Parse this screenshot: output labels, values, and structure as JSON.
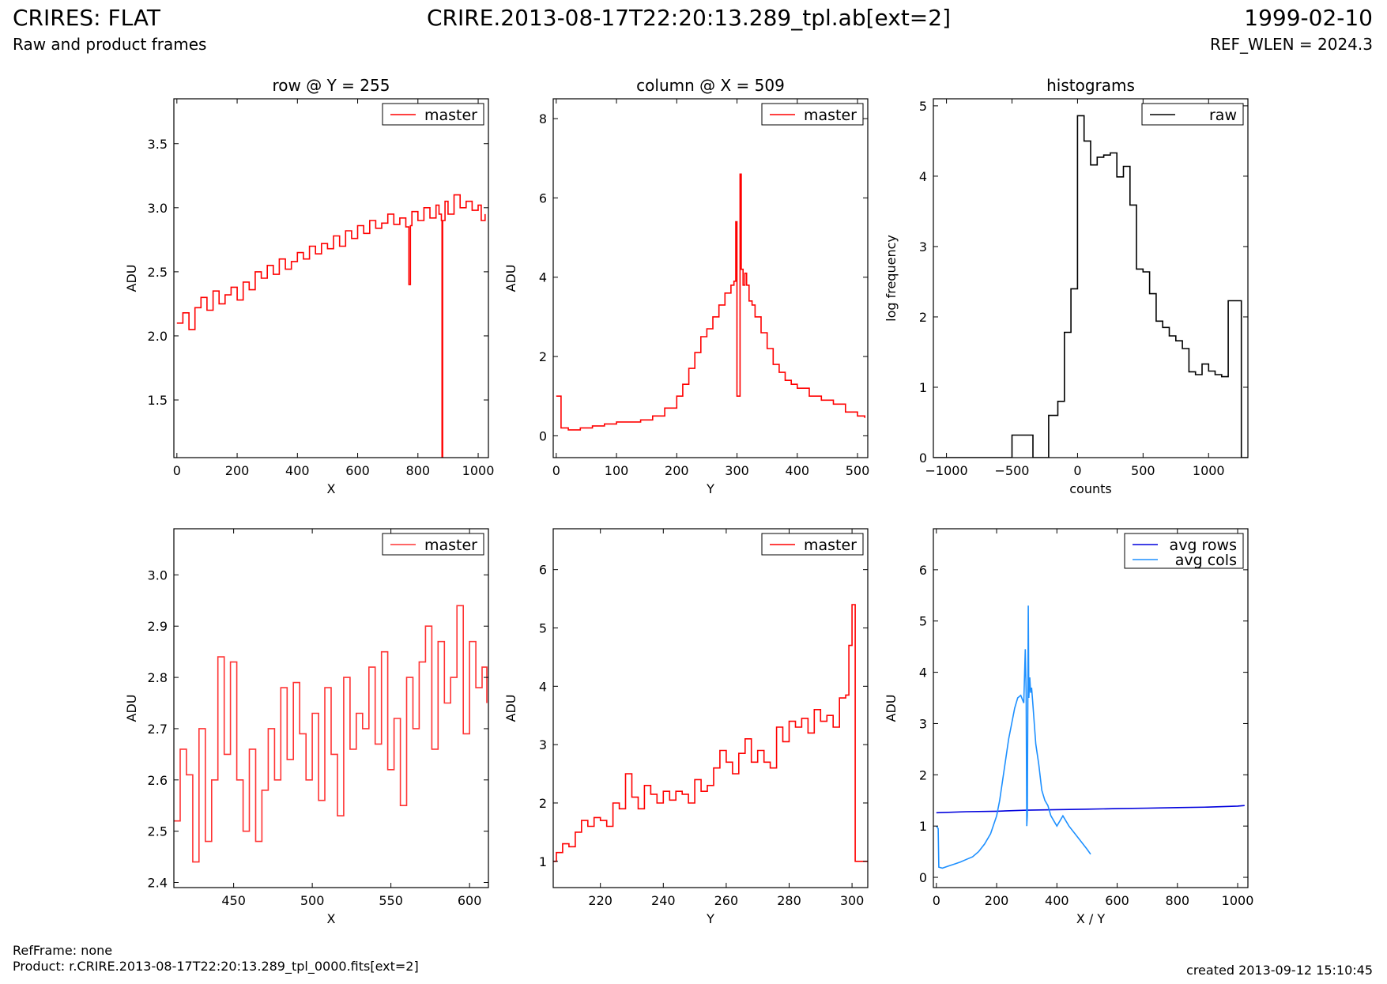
{
  "header": {
    "title": "CRIRES: FLAT",
    "subtitle": "Raw and product frames",
    "file": "CRIRE.2013-08-17T22:20:13.289_tpl.ab[ext=2]",
    "date": "1999-02-10",
    "ref_wlen": "REF_WLEN = 2024.3"
  },
  "footer": {
    "refframe": "RefFrame: none",
    "product": "Product: r.CRIRE.2013-08-17T22:20:13.289_tpl_0000.fits[ext=2]",
    "created": "created 2013-09-12 15:10:45"
  },
  "colors": {
    "master": "#ff0000",
    "raw": "#000000",
    "avg_rows": "#0000dd",
    "avg_cols": "#1e90ff"
  },
  "chart_data": [
    {
      "type": "line",
      "title": "row @ Y = 255",
      "xlabel": "X",
      "ylabel": "ADU",
      "xlim": [
        -10,
        1034
      ],
      "ylim": [
        1.05,
        3.85
      ],
      "xticks": [
        0,
        200,
        400,
        600,
        800,
        1000
      ],
      "yticks": [
        1.5,
        2.0,
        2.5,
        3.0,
        3.5
      ],
      "tick_decimals": 1,
      "legend": "top-right",
      "series": [
        {
          "name": "master",
          "color": "#ff0000",
          "step": true,
          "x": [
            0,
            20,
            40,
            60,
            80,
            100,
            120,
            140,
            160,
            180,
            200,
            220,
            240,
            260,
            280,
            300,
            320,
            340,
            360,
            380,
            400,
            420,
            440,
            460,
            480,
            500,
            520,
            540,
            560,
            580,
            600,
            620,
            640,
            660,
            680,
            700,
            720,
            740,
            760,
            770,
            775,
            780,
            800,
            820,
            840,
            860,
            870,
            878,
            880,
            882,
            890,
            900,
            920,
            940,
            960,
            980,
            1000,
            1010,
            1023
          ],
          "y": [
            2.1,
            2.18,
            2.05,
            2.22,
            2.3,
            2.2,
            2.35,
            2.25,
            2.32,
            2.38,
            2.28,
            2.42,
            2.36,
            2.5,
            2.45,
            2.55,
            2.48,
            2.6,
            2.52,
            2.58,
            2.65,
            2.6,
            2.7,
            2.64,
            2.72,
            2.68,
            2.78,
            2.7,
            2.82,
            2.76,
            2.86,
            2.8,
            2.9,
            2.84,
            2.88,
            2.95,
            2.87,
            2.92,
            2.85,
            2.4,
            2.86,
            2.97,
            2.9,
            3.0,
            2.92,
            3.02,
            2.95,
            2.9,
            1.05,
            2.9,
            3.05,
            2.95,
            3.1,
            3.0,
            3.05,
            2.98,
            3.02,
            2.9,
            2.95
          ]
        }
      ]
    },
    {
      "type": "line",
      "title": "column @ X = 509",
      "xlabel": "Y",
      "ylabel": "ADU",
      "xlim": [
        -5,
        517
      ],
      "ylim": [
        -0.55,
        8.5
      ],
      "xticks": [
        0,
        100,
        200,
        300,
        400,
        500
      ],
      "yticks": [
        0,
        2,
        4,
        6,
        8
      ],
      "tick_decimals": 0,
      "legend": "top-right",
      "series": [
        {
          "name": "master",
          "color": "#ff0000",
          "step": true,
          "x": [
            0,
            6,
            8,
            20,
            40,
            60,
            80,
            100,
            120,
            140,
            160,
            180,
            200,
            210,
            220,
            230,
            240,
            250,
            260,
            270,
            280,
            290,
            295,
            298,
            300,
            302,
            305,
            307,
            310,
            313,
            316,
            320,
            325,
            330,
            340,
            350,
            360,
            370,
            380,
            390,
            400,
            420,
            440,
            460,
            480,
            500,
            512
          ],
          "y": [
            1.0,
            1.0,
            0.2,
            0.15,
            0.2,
            0.25,
            0.3,
            0.35,
            0.35,
            0.4,
            0.5,
            0.7,
            1.0,
            1.3,
            1.7,
            2.1,
            2.5,
            2.7,
            3.0,
            3.3,
            3.6,
            3.8,
            3.9,
            5.4,
            1.0,
            1.0,
            6.6,
            4.2,
            3.8,
            4.1,
            3.8,
            3.4,
            3.3,
            3.0,
            2.6,
            2.2,
            1.8,
            1.6,
            1.4,
            1.3,
            1.2,
            1.0,
            0.9,
            0.8,
            0.6,
            0.5,
            0.45
          ]
        }
      ]
    },
    {
      "type": "line",
      "title": "histograms",
      "xlabel": "counts",
      "ylabel": "log frequency",
      "xlim": [
        -1100,
        1300
      ],
      "ylim": [
        0,
        5.1
      ],
      "xticks": [
        -1000,
        -500,
        0,
        500,
        1000
      ],
      "yticks": [
        0,
        1,
        2,
        3,
        4,
        5
      ],
      "tick_decimals": 0,
      "minus_sign": "−",
      "legend": "top-right",
      "series": [
        {
          "name": "raw",
          "color": "#000000",
          "step": true,
          "x": [
            -1100,
            -500,
            -340,
            -220,
            -150,
            -100,
            -50,
            0,
            50,
            100,
            150,
            200,
            250,
            300,
            350,
            400,
            450,
            500,
            550,
            600,
            650,
            700,
            750,
            800,
            850,
            900,
            950,
            1000,
            1050,
            1100,
            1150,
            1200,
            1250,
            1300
          ],
          "y": [
            0,
            0.32,
            0,
            0.6,
            0.8,
            1.78,
            2.4,
            4.86,
            4.5,
            4.16,
            4.27,
            4.3,
            4.33,
            3.99,
            4.14,
            3.59,
            2.68,
            2.64,
            2.33,
            1.94,
            1.85,
            1.73,
            1.66,
            1.55,
            1.22,
            1.18,
            1.33,
            1.23,
            1.18,
            1.15,
            2.23,
            2.23,
            0,
            0
          ]
        }
      ]
    },
    {
      "type": "line",
      "title": "",
      "xlabel": "X",
      "ylabel": "ADU",
      "xlim": [
        412,
        612
      ],
      "ylim": [
        2.39,
        3.09
      ],
      "xticks": [
        450,
        500,
        550,
        600
      ],
      "yticks": [
        2.4,
        2.5,
        2.6,
        2.7,
        2.8,
        2.9,
        3.0
      ],
      "tick_decimals": 1,
      "legend": "top-right",
      "series": [
        {
          "name": "master",
          "color": "#ff3333",
          "step": true,
          "x": [
            412,
            416,
            420,
            424,
            428,
            432,
            436,
            440,
            444,
            448,
            452,
            456,
            460,
            464,
            468,
            472,
            476,
            480,
            484,
            488,
            492,
            496,
            500,
            504,
            508,
            512,
            516,
            520,
            524,
            528,
            532,
            536,
            540,
            544,
            548,
            552,
            556,
            560,
            564,
            568,
            572,
            576,
            580,
            584,
            588,
            592,
            596,
            600,
            604,
            608,
            611
          ],
          "y": [
            2.52,
            2.66,
            2.61,
            2.44,
            2.7,
            2.48,
            2.6,
            2.84,
            2.65,
            2.83,
            2.6,
            2.5,
            2.66,
            2.48,
            2.58,
            2.7,
            2.6,
            2.78,
            2.64,
            2.79,
            2.69,
            2.6,
            2.73,
            2.56,
            2.78,
            2.65,
            2.53,
            2.8,
            2.66,
            2.73,
            2.7,
            2.82,
            2.67,
            2.85,
            2.62,
            2.72,
            2.55,
            2.8,
            2.7,
            2.83,
            2.9,
            2.66,
            2.87,
            2.75,
            2.8,
            2.94,
            2.69,
            2.87,
            2.78,
            2.82,
            2.75
          ]
        }
      ]
    },
    {
      "type": "line",
      "title": "",
      "xlabel": "Y",
      "ylabel": "ADU",
      "xlim": [
        205,
        305
      ],
      "ylim": [
        0.55,
        6.7
      ],
      "xticks": [
        220,
        240,
        260,
        280,
        300
      ],
      "yticks": [
        1,
        2,
        3,
        4,
        5,
        6
      ],
      "tick_decimals": 0,
      "legend": "top-right",
      "series": [
        {
          "name": "master",
          "color": "#ff0000",
          "step": true,
          "x": [
            205,
            206,
            208,
            210,
            212,
            214,
            216,
            218,
            220,
            222,
            224,
            226,
            228,
            230,
            232,
            234,
            236,
            238,
            240,
            242,
            244,
            246,
            248,
            250,
            252,
            254,
            256,
            258,
            260,
            262,
            264,
            266,
            268,
            270,
            272,
            274,
            276,
            278,
            280,
            282,
            284,
            286,
            288,
            290,
            292,
            294,
            296,
            298,
            299,
            300,
            301,
            305
          ],
          "y": [
            1.0,
            1.15,
            1.3,
            1.25,
            1.5,
            1.7,
            1.6,
            1.75,
            1.7,
            1.6,
            2.0,
            1.9,
            2.5,
            2.1,
            1.9,
            2.3,
            2.15,
            2.0,
            2.2,
            2.05,
            2.2,
            2.15,
            2.0,
            2.4,
            2.2,
            2.3,
            2.6,
            2.9,
            2.7,
            2.5,
            2.85,
            3.1,
            2.7,
            2.9,
            2.7,
            2.6,
            3.3,
            3.05,
            3.4,
            3.3,
            3.45,
            3.2,
            3.6,
            3.4,
            3.5,
            3.3,
            3.8,
            3.85,
            4.7,
            5.4,
            1.0,
            1.0
          ]
        }
      ]
    },
    {
      "type": "line",
      "title": "",
      "xlabel": "X / Y",
      "ylabel": "ADU",
      "xlim": [
        -10,
        1034
      ],
      "ylim": [
        -0.2,
        6.8
      ],
      "xticks": [
        0,
        200,
        400,
        600,
        800,
        1000
      ],
      "yticks": [
        0,
        1,
        2,
        3,
        4,
        5,
        6
      ],
      "tick_decimals": 0,
      "legend": "top-right",
      "series": [
        {
          "name": "avg rows",
          "color": "#0000dd",
          "step": false,
          "x": [
            0,
            100,
            200,
            300,
            400,
            500,
            600,
            700,
            800,
            900,
            1000,
            1023
          ],
          "y": [
            1.26,
            1.28,
            1.29,
            1.31,
            1.32,
            1.33,
            1.34,
            1.35,
            1.36,
            1.37,
            1.39,
            1.4
          ]
        },
        {
          "name": "avg cols",
          "color": "#1e90ff",
          "step": false,
          "x": [
            0,
            6,
            8,
            20,
            40,
            60,
            80,
            100,
            120,
            140,
            160,
            180,
            200,
            210,
            220,
            230,
            240,
            250,
            260,
            270,
            280,
            290,
            295,
            298,
            300,
            302,
            305,
            307,
            310,
            313,
            316,
            320,
            325,
            330,
            340,
            350,
            360,
            370,
            380,
            390,
            400,
            420,
            440,
            460,
            480,
            500,
            512
          ],
          "y": [
            1.0,
            0.95,
            0.2,
            0.18,
            0.22,
            0.26,
            0.3,
            0.35,
            0.4,
            0.5,
            0.65,
            0.85,
            1.2,
            1.5,
            1.9,
            2.3,
            2.7,
            3.0,
            3.3,
            3.5,
            3.55,
            3.4,
            4.45,
            3.6,
            1.0,
            1.2,
            5.3,
            3.5,
            3.9,
            3.6,
            3.7,
            3.4,
            3.0,
            2.6,
            2.2,
            1.7,
            1.5,
            1.4,
            1.2,
            1.1,
            1.0,
            1.2,
            1.0,
            0.85,
            0.7,
            0.55,
            0.45
          ]
        }
      ]
    }
  ]
}
